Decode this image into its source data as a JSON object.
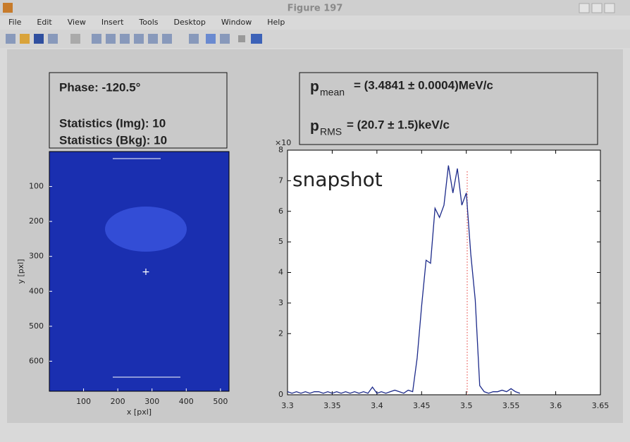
{
  "window": {
    "title": "Figure 197",
    "menu": [
      "File",
      "Edit",
      "View",
      "Insert",
      "Tools",
      "Desktop",
      "Window",
      "Help"
    ]
  },
  "image_plot": {
    "xlabel": "x [pxl]",
    "ylabel": "y [pxl]",
    "xlim": [
      0,
      525
    ],
    "ylim": [
      0,
      686
    ],
    "xticks": [
      100,
      200,
      300,
      400,
      500
    ],
    "yticks": [
      100,
      200,
      300,
      400,
      500,
      600
    ],
    "center": [
      282,
      345
    ],
    "phase": "Phase: -120.5°",
    "stats_img": "Statistics (Img): 10",
    "stats_bkg": "Statistics (Bkg): 10"
  },
  "momentum": {
    "symbol": "p",
    "mean_sub": "mean",
    "mean_text": "= (3.4841 ± 0.0004)MeV/c",
    "rms_sub": "RMS",
    "rms_text": "= (20.7 ± 1.5)keV/c"
  },
  "spectrum": {
    "type": "line",
    "annotation": "snapshot",
    "exponent": "×10",
    "color": "#1c2a8a",
    "marker_x": 3.501,
    "marker_color": "#e53935",
    "xlim": [
      3.3,
      3.65
    ],
    "ylim": [
      0,
      8
    ],
    "xticks": [
      3.3,
      3.35,
      3.4,
      3.45,
      3.5,
      3.55,
      3.6,
      3.65
    ],
    "yticks": [
      0,
      2,
      3,
      4,
      5,
      6,
      7,
      8
    ],
    "x": [
      3.3,
      3.305,
      3.31,
      3.315,
      3.32,
      3.325,
      3.33,
      3.335,
      3.34,
      3.345,
      3.35,
      3.355,
      3.36,
      3.365,
      3.37,
      3.375,
      3.38,
      3.385,
      3.39,
      3.395,
      3.4,
      3.405,
      3.41,
      3.415,
      3.42,
      3.425,
      3.43,
      3.435,
      3.44,
      3.445,
      3.45,
      3.455,
      3.46,
      3.465,
      3.47,
      3.475,
      3.48,
      3.485,
      3.49,
      3.495,
      3.5,
      3.505,
      3.51,
      3.515,
      3.52,
      3.525,
      3.53,
      3.535,
      3.54,
      3.545,
      3.55,
      3.555,
      3.56
    ],
    "values": [
      0.1,
      0.05,
      0.1,
      0.05,
      0.1,
      0.05,
      0.1,
      0.1,
      0.05,
      0.1,
      0.05,
      0.1,
      0.05,
      0.1,
      0.05,
      0.1,
      0.05,
      0.1,
      0.05,
      0.25,
      0.05,
      0.1,
      0.05,
      0.1,
      0.15,
      0.1,
      0.05,
      0.15,
      0.1,
      1.2,
      2.9,
      4.4,
      4.3,
      6.1,
      5.8,
      6.2,
      7.5,
      6.6,
      7.4,
      6.2,
      6.6,
      4.6,
      3.1,
      0.3,
      0.1,
      0.05,
      0.1,
      0.1,
      0.15,
      0.1,
      0.2,
      0.1,
      0.05
    ]
  }
}
